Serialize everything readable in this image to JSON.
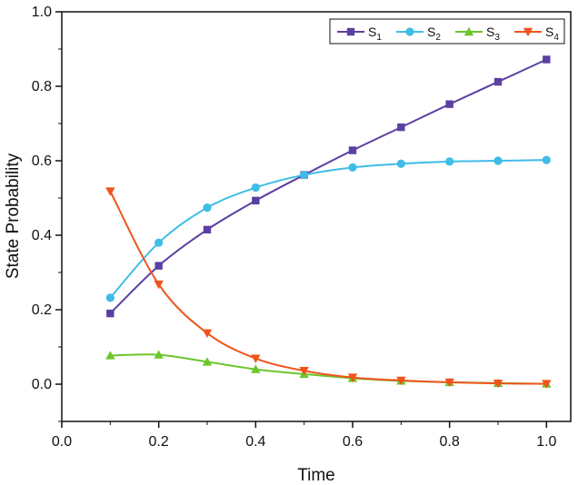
{
  "chart_data": {
    "type": "line",
    "title": "",
    "xlabel": "Time",
    "ylabel": "State Probability",
    "xlim": [
      0.0,
      1.05
    ],
    "ylim": [
      -0.1,
      1.0
    ],
    "xticks": [
      0.0,
      0.2,
      0.4,
      0.6,
      0.8,
      1.0
    ],
    "xtick_labels": [
      "0.0",
      "0.2",
      "0.4",
      "0.6",
      "0.8",
      "1.0"
    ],
    "yticks": [
      0.0,
      0.2,
      0.4,
      0.6,
      0.8,
      1.0
    ],
    "ytick_labels": [
      "0.0",
      "0.2",
      "0.4",
      "0.6",
      "0.8",
      "1.0"
    ],
    "grid": false,
    "legend_position": "top-right",
    "x": [
      0.1,
      0.2,
      0.3,
      0.4,
      0.5,
      0.6,
      0.7,
      0.8,
      0.9,
      1.0
    ],
    "series": [
      {
        "name": "S",
        "sub": "1",
        "color": "#5b3fa3",
        "marker": "square",
        "values": [
          0.19,
          0.318,
          0.415,
          0.493,
          0.562,
          0.628,
          0.69,
          0.752,
          0.812,
          0.872
        ]
      },
      {
        "name": "S",
        "sub": "2",
        "color": "#3fbce8",
        "marker": "circle",
        "values": [
          0.232,
          0.38,
          0.474,
          0.528,
          0.562,
          0.582,
          0.592,
          0.598,
          0.6,
          0.602
        ]
      },
      {
        "name": "S",
        "sub": "3",
        "color": "#6cc62b",
        "marker": "triangle-up",
        "values": [
          0.077,
          0.079,
          0.06,
          0.04,
          0.027,
          0.016,
          0.009,
          0.005,
          0.003,
          0.001
        ]
      },
      {
        "name": "S",
        "sub": "4",
        "color": "#f0531c",
        "marker": "triangle-down",
        "values": [
          0.518,
          0.268,
          0.137,
          0.069,
          0.036,
          0.018,
          0.01,
          0.005,
          0.002,
          0.001
        ]
      }
    ]
  }
}
